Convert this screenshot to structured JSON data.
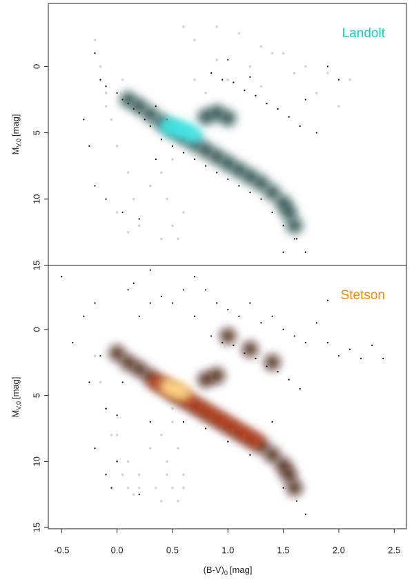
{
  "chart_data": [
    {
      "type": "scatter",
      "annotation": "Landolt",
      "annotation_color": "#1ec8c8",
      "ylabel": {
        "text": "M",
        "sub": "V,0",
        "unit": "[mag]"
      },
      "xlim": [
        -0.62,
        2.61
      ],
      "ylim": [
        15,
        -4.75
      ],
      "yticks": [
        0,
        5,
        10,
        15
      ],
      "series": [
        {
          "color": "#d2d2d2",
          "glow": false,
          "x": [
            -0.2,
            -0.15,
            -0.1,
            -0.05,
            0.0,
            0.05,
            0.1,
            0.15,
            0.2,
            -0.1,
            0.0,
            0.1,
            0.2,
            0.3,
            0.4,
            0.45,
            0.5,
            0.55,
            0.6,
            0.4,
            0.5,
            0.6,
            0.7,
            0.9,
            1.1,
            1.3,
            1.5,
            1.7,
            1.9,
            2.1,
            0.8,
            1.0,
            1.2,
            1.4,
            1.6,
            1.8,
            2.0,
            0.7,
            0.9,
            1.3
          ],
          "y": [
            -2,
            0,
            2,
            4,
            6,
            1,
            8,
            10,
            12,
            3,
            11,
            12.5,
            12,
            9,
            8,
            10,
            12,
            13,
            11,
            13,
            7,
            -3,
            -2,
            -3,
            -2.5,
            -1.5,
            -1,
            0,
            0.5,
            1,
            2,
            1,
            0,
            -1,
            0.5,
            2,
            3,
            1,
            -0.5,
            1.5
          ]
        },
        {
          "color": "#000000",
          "glow": false,
          "x": [
            -0.2,
            -0.15,
            -0.1,
            0,
            0.05,
            0.1,
            0.15,
            0.2,
            0.25,
            0.3,
            0.35,
            0.4,
            0.5,
            0.6,
            0.7,
            0.8,
            0.9,
            1.0,
            1.1,
            1.2,
            1.3,
            1.4,
            1.5,
            1.6,
            1.7,
            1.8,
            0.85,
            0.95,
            1.05,
            1.15,
            1.25,
            1.35,
            1.45,
            1.55,
            1.65,
            -0.3,
            -0.25,
            -0.2,
            -0.1,
            0.05,
            0.2,
            0.35,
            0.45,
            1.0,
            1.2,
            1.9,
            2.0,
            1.7,
            1.5,
            1.62
          ],
          "y": [
            -1,
            1,
            1.5,
            2,
            2.5,
            2.8,
            3.2,
            3.5,
            4,
            4.5,
            3,
            5.5,
            6,
            6.5,
            7,
            7.5,
            8,
            8.5,
            9,
            9.5,
            10,
            11,
            12,
            13,
            14,
            5,
            0.5,
            1,
            1.2,
            1.8,
            2.2,
            2.8,
            3.2,
            3.8,
            4.5,
            4,
            6,
            9,
            10,
            11,
            11.5,
            7,
            4,
            -0.5,
            0.8,
            0,
            1,
            2.5,
            14,
            13
          ]
        },
        {
          "color": "#0e3a3a",
          "glow": true,
          "x": [
            0.1,
            0.2,
            0.3,
            0.4,
            0.5,
            0.6,
            0.7,
            0.8,
            0.9,
            1.0,
            1.1,
            1.2,
            1.3,
            1.4,
            1.5,
            1.55,
            1.6,
            0.8,
            0.9,
            1.0
          ],
          "y": [
            2.5,
            3,
            3.6,
            4.2,
            4.8,
            5.3,
            5.8,
            6.3,
            6.8,
            7.3,
            7.8,
            8.3,
            8.8,
            9.5,
            10.3,
            11,
            12,
            3.8,
            3.5,
            3.9
          ]
        },
        {
          "color": "#40e8e8",
          "glow": true,
          "x": [
            0.45,
            0.5,
            0.55,
            0.6,
            0.65,
            0.7
          ],
          "y": [
            4.5,
            4.6,
            4.7,
            4.8,
            5.0,
            5.2
          ]
        }
      ]
    },
    {
      "type": "scatter",
      "annotation": "Stetson",
      "annotation_color": "#f08a10",
      "ylabel": {
        "text": "M",
        "sub": "V,0",
        "unit": "[mag]"
      },
      "xlabel": {
        "text": "(B-V)",
        "sub": "0",
        "unit": "[mag]"
      },
      "xlim": [
        -0.62,
        2.61
      ],
      "ylim": [
        15.1,
        -4.85
      ],
      "yticks": [
        0,
        5,
        10,
        15
      ],
      "xticks": [
        -0.5,
        0.0,
        0.5,
        1.0,
        1.5,
        2.0,
        2.5
      ],
      "series": [
        {
          "color": "#d2d2d2",
          "glow": false,
          "x": [
            -0.2,
            -0.15,
            -0.1,
            -0.05,
            0.0,
            0.05,
            0.1,
            0.15,
            0.2,
            0.3,
            0.4,
            0.45,
            0.5,
            0.55,
            0.6,
            0.4,
            0.5,
            0.35,
            0.45,
            0.55,
            0.1,
            0.2,
            0.0,
            0.6,
            0.5
          ],
          "y": [
            2,
            4,
            6,
            8,
            10,
            11,
            12,
            12.5,
            12,
            9,
            8,
            10,
            12,
            13,
            11,
            13,
            7,
            12,
            11,
            9,
            10,
            11,
            8,
            12,
            6
          ]
        },
        {
          "color": "#000000",
          "glow": false,
          "x": [
            -0.5,
            -0.4,
            -0.3,
            -0.2,
            -0.15,
            -0.1,
            0,
            0.05,
            0.1,
            0.15,
            0.2,
            0.3,
            0.4,
            0.5,
            0.6,
            0.7,
            0.8,
            0.9,
            1.0,
            1.1,
            1.2,
            1.3,
            1.4,
            1.5,
            1.6,
            1.7,
            1.8,
            1.9,
            2.0,
            2.1,
            2.2,
            2.3,
            0.85,
            0.95,
            1.05,
            1.15,
            1.25,
            1.35,
            1.45,
            1.55,
            1.65,
            -0.25,
            -0.2,
            -0.1,
            -0.05,
            0.0,
            0.2,
            0.3,
            0.6,
            0.8,
            1.0,
            1.2,
            1.4,
            2.4,
            1.5,
            1.62,
            1.7,
            0.3,
            0.7,
            1.9
          ],
          "y": [
            -4,
            1,
            -1,
            -2,
            2,
            6,
            6.5,
            4,
            -3,
            -3.5,
            -1,
            -2,
            -2.5,
            -2,
            -3,
            -1,
            -3,
            -2,
            -1.5,
            -1,
            -2,
            -0.5,
            -1,
            0,
            0.5,
            1,
            -0.5,
            1,
            2,
            1.5,
            2.2,
            1.2,
            0.5,
            1,
            1.2,
            1.8,
            2.2,
            2.8,
            3.2,
            3.8,
            4.5,
            4,
            9,
            11,
            12,
            10,
            12.5,
            7,
            7,
            7.5,
            8.5,
            9.5,
            7,
            2.2,
            12,
            13,
            14,
            -4.5,
            -4,
            -2.2
          ]
        },
        {
          "color": "#3a0a05",
          "glow": true,
          "x": [
            0.0,
            0.1,
            0.2,
            0.3,
            0.4,
            0.5,
            0.6,
            0.7,
            0.8,
            0.9,
            1.0,
            1.1,
            1.2,
            1.3,
            1.4,
            1.5,
            1.55,
            1.6,
            0.8,
            0.9,
            1.0,
            1.2,
            1.4
          ],
          "y": [
            1.8,
            2.5,
            3,
            3.6,
            4.2,
            4.8,
            5.3,
            5.8,
            6.3,
            6.8,
            7.3,
            7.8,
            8.3,
            8.8,
            9.5,
            10.3,
            11,
            12,
            3.8,
            3.5,
            0.5,
            1.5,
            2.5
          ]
        },
        {
          "color": "#c43b0c",
          "glow": true,
          "x": [
            0.35,
            0.45,
            0.55,
            0.65,
            0.75,
            0.85,
            0.95,
            1.05,
            1.15,
            1.25
          ],
          "y": [
            4,
            4.4,
            4.9,
            5.4,
            5.9,
            6.4,
            6.9,
            7.4,
            7.9,
            8.4
          ]
        },
        {
          "color": "#ffd98a",
          "glow": true,
          "x": [
            0.45,
            0.5,
            0.55,
            0.6
          ],
          "y": [
            4.3,
            4.5,
            4.6,
            4.8
          ]
        }
      ]
    }
  ]
}
